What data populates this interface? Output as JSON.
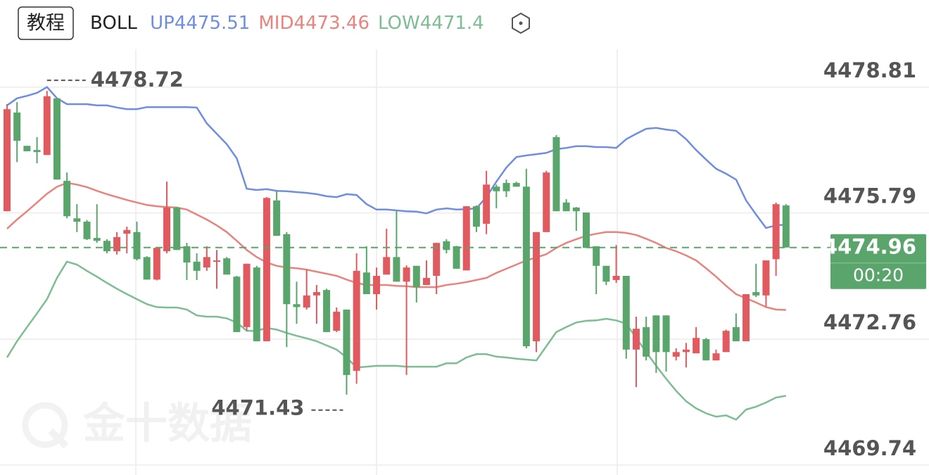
{
  "tutorial_button": "教程",
  "watermark": "金十数据",
  "chart_data": {
    "type": "candlestick",
    "indicator": "BOLL",
    "ylim": [
      4469.5,
      4480.9
    ],
    "yticks": [
      4478.81,
      4475.79,
      4472.76,
      4469.74
    ],
    "up_color": "#e05a5f",
    "down_color": "#5aa56c",
    "high_label": 4478.72,
    "low_label": 4471.43,
    "last_price": 4474.96,
    "countdown": "00:20",
    "price_box_color": "#5aa56c",
    "open": [
      4475.83,
      4478.2,
      4477.4,
      4477.3,
      4477.18,
      4478.54,
      4476.56,
      4475.66,
      4475.58,
      4475.19,
      4475.12,
      4474.87,
      4475.29,
      4475.33,
      4474.73,
      4474.19,
      4474.87,
      4475.92,
      4474.99,
      4474.62,
      4474.48,
      4474.62,
      4474.7,
      4474.26,
      4473.05,
      4474.48,
      4472.71,
      4476.09,
      4475.28,
      4473.6,
      4473.52,
      4473.81,
      4473.94,
      4472.96,
      4473.47,
      4472.0,
      4474.36,
      4473.84,
      4474.31,
      4474.73,
      4474.14,
      4474.52,
      4474.06,
      4474.28,
      4475.11,
      4474.99,
      4474.41,
      4475.95,
      4475.53,
      4476.42,
      4476.51,
      4476.51,
      4476.42,
      4472.71,
      4475.33,
      4477.61,
      4476.04,
      4475.92,
      4475.8,
      4474.99,
      4474.52,
      4474.18,
      4474.28,
      4472.51,
      4473.05,
      4473.33,
      4473.33,
      4472.34,
      4472.45,
      4472.42,
      4472.76,
      4472.25,
      4472.45,
      4473.05,
      4472.71,
      4473.89,
      4473.81,
      4474.68,
      4475.97
    ],
    "high": [
      4478.4,
      4478.45,
      4477.4,
      4477.61,
      4478.72,
      4478.54,
      4476.76,
      4476.0,
      4475.62,
      4476.0,
      4475.16,
      4475.33,
      4475.46,
      4475.58,
      4474.75,
      4474.95,
      4476.54,
      4475.93,
      4475.07,
      4474.82,
      4474.99,
      4474.9,
      4474.73,
      4474.28,
      4474.57,
      4474.52,
      4476.17,
      4476.34,
      4475.33,
      4474.14,
      4474.43,
      4474.06,
      4473.97,
      4473.52,
      4473.47,
      4474.82,
      4474.99,
      4474.48,
      4475.41,
      4475.83,
      4474.53,
      4474.52,
      4474.65,
      4475.07,
      4475.16,
      4475.0,
      4475.95,
      4475.97,
      4476.8,
      4476.47,
      4476.59,
      4476.54,
      4476.85,
      4475.33,
      4476.8,
      4477.66,
      4476.12,
      4475.93,
      4475.8,
      4474.99,
      4474.52,
      4475.02,
      4474.28,
      4473.3,
      4473.3,
      4473.33,
      4473.33,
      4472.54,
      4472.67,
      4473.05,
      4472.79,
      4472.51,
      4472.99,
      4473.38,
      4473.84,
      4474.57,
      4474.65,
      4476.04,
      4476.0
    ],
    "low": [
      4475.83,
      4477.01,
      4477.27,
      4476.98,
      4477.18,
      4476.59,
      4475.66,
      4475.33,
      4475.14,
      4475.07,
      4474.82,
      4474.79,
      4474.82,
      4474.65,
      4474.19,
      4474.17,
      4474.82,
      4474.9,
      4474.18,
      4474.18,
      4474.4,
      4473.97,
      4474.31,
      4472.93,
      4472.96,
      4472.71,
      4472.71,
      4475.24,
      4472.57,
      4473.13,
      4473.47,
      4473.13,
      4472.93,
      4472.93,
      4471.43,
      4471.69,
      4473.84,
      4473.47,
      4474.31,
      4474.14,
      4471.9,
      4473.64,
      4474.06,
      4473.84,
      4474.82,
      4474.45,
      4474.41,
      4475.33,
      4475.28,
      4475.9,
      4476.17,
      4476.42,
      4472.54,
      4472.45,
      4475.33,
      4475.83,
      4475.83,
      4475.36,
      4474.95,
      4473.84,
      4474.06,
      4474.11,
      4472.29,
      4471.61,
      4472.25,
      4471.95,
      4471.98,
      4472.25,
      4472.08,
      4472.42,
      4472.25,
      4472.25,
      4472.45,
      4472.71,
      4472.71,
      4473.77,
      4473.55,
      4474.28,
      4474.96
    ],
    "close": [
      4478.28,
      4477.52,
      4477.27,
      4477.25,
      4478.59,
      4476.59,
      4475.71,
      4475.58,
      4475.16,
      4475.12,
      4474.87,
      4475.21,
      4475.38,
      4474.68,
      4474.19,
      4474.95,
      4475.92,
      4474.9,
      4474.6,
      4474.4,
      4474.73,
      4474.65,
      4474.31,
      4472.93,
      4474.57,
      4472.71,
      4476.15,
      4475.24,
      4473.6,
      4473.53,
      4473.81,
      4473.89,
      4472.93,
      4473.42,
      4471.9,
      4474.4,
      4473.84,
      4474.28,
      4474.73,
      4474.14,
      4474.48,
      4474.01,
      4474.23,
      4475.07,
      4474.9,
      4474.45,
      4475.95,
      4475.46,
      4476.47,
      4476.31,
      4476.31,
      4476.42,
      4472.59,
      4475.33,
      4476.76,
      4475.83,
      4475.83,
      4475.83,
      4474.95,
      4474.52,
      4474.14,
      4474.28,
      4472.51,
      4473.01,
      4472.34,
      4472.45,
      4472.45,
      4472.45,
      4472.51,
      4472.79,
      4472.25,
      4472.42,
      4472.96,
      4472.71,
      4473.84,
      4473.81,
      4474.65,
      4476.0,
      4474.96
    ],
    "series": [
      {
        "name": "UP",
        "legend_value": 4475.51,
        "color": "#6f8ee0",
        "values": [
          4478.37,
          4478.54,
          4478.6,
          4478.67,
          4478.81,
          4478.54,
          4478.4,
          4478.4,
          4478.4,
          4478.37,
          4478.37,
          4478.32,
          4478.28,
          4478.28,
          4478.33,
          4478.33,
          4478.33,
          4478.33,
          4478.33,
          4478.32,
          4477.94,
          4477.69,
          4477.44,
          4477.1,
          4476.37,
          4476.34,
          4476.36,
          4476.32,
          4476.31,
          4476.29,
          4476.27,
          4476.24,
          4476.19,
          4476.17,
          4476.24,
          4476.22,
          4476.0,
          4475.87,
          4475.87,
          4475.85,
          4475.83,
          4475.82,
          4475.78,
          4475.87,
          4475.9,
          4475.87,
          4475.88,
          4475.9,
          4476.17,
          4476.54,
          4476.88,
          4477.13,
          4477.17,
          4477.2,
          4477.23,
          4477.32,
          4477.35,
          4477.39,
          4477.39,
          4477.37,
          4477.37,
          4477.35,
          4477.56,
          4477.69,
          4477.81,
          4477.83,
          4477.79,
          4477.76,
          4477.56,
          4477.3,
          4477.07,
          4476.85,
          4476.73,
          4476.59,
          4476.09,
          4475.75,
          4475.43,
          4475.49,
          4475.51
        ]
      },
      {
        "name": "MID",
        "legend_value": 4473.46,
        "color": "#e8837d",
        "values": [
          4475.41,
          4475.63,
          4475.83,
          4476.04,
          4476.25,
          4476.42,
          4476.51,
          4476.47,
          4476.41,
          4476.32,
          4476.24,
          4476.17,
          4476.1,
          4476.04,
          4475.98,
          4475.95,
          4475.93,
          4475.92,
          4475.87,
          4475.75,
          4475.63,
          4475.49,
          4475.33,
          4475.12,
          4474.9,
          4474.73,
          4474.6,
          4474.52,
          4474.48,
          4474.46,
          4474.43,
          4474.38,
          4474.33,
          4474.28,
          4474.19,
          4474.11,
          4474.06,
          4474.06,
          4474.06,
          4474.04,
          4474.03,
          4474.01,
          4474.01,
          4474.01,
          4474.06,
          4474.09,
          4474.13,
          4474.18,
          4474.23,
          4474.35,
          4474.45,
          4474.55,
          4474.65,
          4474.72,
          4474.8,
          4474.95,
          4475.07,
          4475.16,
          4475.24,
          4475.29,
          4475.33,
          4475.33,
          4475.31,
          4475.26,
          4475.17,
          4475.07,
          4474.95,
          4474.87,
          4474.77,
          4474.65,
          4474.46,
          4474.26,
          4474.04,
          4473.84,
          4473.74,
          4473.64,
          4473.53,
          4473.47,
          4473.46
        ]
      },
      {
        "name": "LOW",
        "legend_value": 4471.4,
        "color": "#7dbd93",
        "values": [
          4472.32,
          4472.71,
          4473.05,
          4473.38,
          4473.72,
          4474.23,
          4474.62,
          4474.55,
          4474.4,
          4474.26,
          4474.11,
          4473.97,
          4473.84,
          4473.72,
          4473.6,
          4473.53,
          4473.52,
          4473.52,
          4473.47,
          4473.33,
          4473.3,
          4473.3,
          4473.26,
          4473.16,
          4472.96,
          4472.96,
          4473.03,
          4472.99,
          4472.91,
          4472.84,
          4472.78,
          4472.71,
          4472.61,
          4472.51,
          4472.32,
          4472.08,
          4472.1,
          4472.12,
          4472.12,
          4472.12,
          4472.1,
          4472.1,
          4472.1,
          4472.1,
          4472.18,
          4472.18,
          4472.32,
          4472.4,
          4472.4,
          4472.34,
          4472.32,
          4472.29,
          4472.27,
          4472.25,
          4472.59,
          4472.93,
          4473.05,
          4473.16,
          4473.2,
          4473.21,
          4473.25,
          4473.21,
          4473.13,
          4472.79,
          4472.45,
          4472.12,
          4471.81,
          4471.52,
          4471.27,
          4471.1,
          4470.98,
          4470.9,
          4470.93,
          4470.83,
          4471.07,
          4471.14,
          4471.24,
          4471.36,
          4471.4
        ]
      }
    ]
  }
}
